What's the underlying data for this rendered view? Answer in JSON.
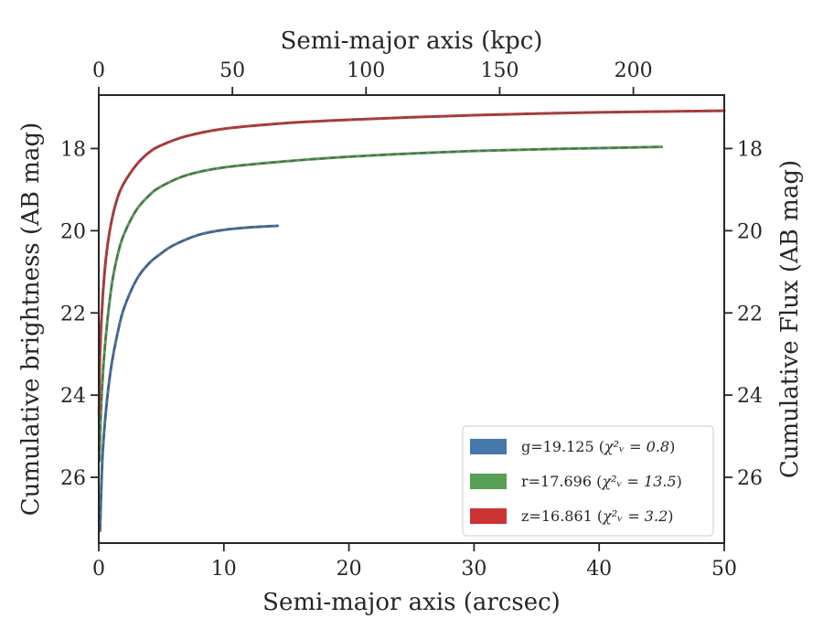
{
  "chart_data": {
    "type": "line",
    "xlabel": "Semi-major axis (arcsec)",
    "ylabel": "Cumulative brightness (AB mag)",
    "top_xlabel": "Semi-major axis (kpc)",
    "right_ylabel": "Cumulative Flux (AB mag)",
    "xlim": [
      0,
      50
    ],
    "ylim": [
      27.6,
      16.7
    ],
    "y_inverted": true,
    "top_xlim": [
      0,
      234
    ],
    "x_ticks": [
      0,
      10,
      20,
      30,
      40,
      50
    ],
    "y_ticks": [
      18,
      20,
      22,
      24,
      26
    ],
    "top_x_ticks": [
      0,
      50,
      100,
      150,
      200
    ],
    "legend_position": "lower-right",
    "series": [
      {
        "name": "g=19.125",
        "chi2": "χ²ᵥ = 0.8",
        "color": "#4477aa",
        "x": [
          0.1,
          0.3,
          0.6,
          1.0,
          1.5,
          2.0,
          3.0,
          4.0,
          5.0,
          6.0,
          8.0,
          10.0,
          12.0,
          14.3
        ],
        "y": [
          27.3,
          25.5,
          24.3,
          23.3,
          22.5,
          21.9,
          21.2,
          20.8,
          20.55,
          20.35,
          20.1,
          19.98,
          19.92,
          19.88
        ]
      },
      {
        "name": "r=17.696",
        "chi2": "χ²ᵥ = 13.5",
        "color": "#55a055",
        "x": [
          0.05,
          0.2,
          0.5,
          1.0,
          1.5,
          2.0,
          3.0,
          4.0,
          5.0,
          7.0,
          10.0,
          15.0,
          20.0,
          25.0,
          30.0,
          35.0,
          40.0,
          45.0
        ],
        "y": [
          25.6,
          24.2,
          22.8,
          21.4,
          20.6,
          20.1,
          19.5,
          19.15,
          18.92,
          18.65,
          18.46,
          18.31,
          18.2,
          18.12,
          18.06,
          18.02,
          17.99,
          17.96
        ]
      },
      {
        "name": "z=16.861",
        "chi2": "χ²ᵥ = 3.2",
        "color": "#cc3333",
        "x": [
          0.02,
          0.1,
          0.3,
          0.6,
          1.0,
          1.5,
          2.0,
          3.0,
          4.0,
          5.0,
          7.0,
          10.0,
          15.0,
          20.0,
          25.0,
          30.0,
          35.0,
          40.0,
          45.0,
          50.0
        ],
        "y": [
          24.5,
          23.0,
          21.7,
          20.6,
          19.8,
          19.2,
          18.85,
          18.4,
          18.1,
          17.92,
          17.7,
          17.52,
          17.38,
          17.3,
          17.24,
          17.19,
          17.15,
          17.12,
          17.1,
          17.08
        ]
      }
    ]
  }
}
